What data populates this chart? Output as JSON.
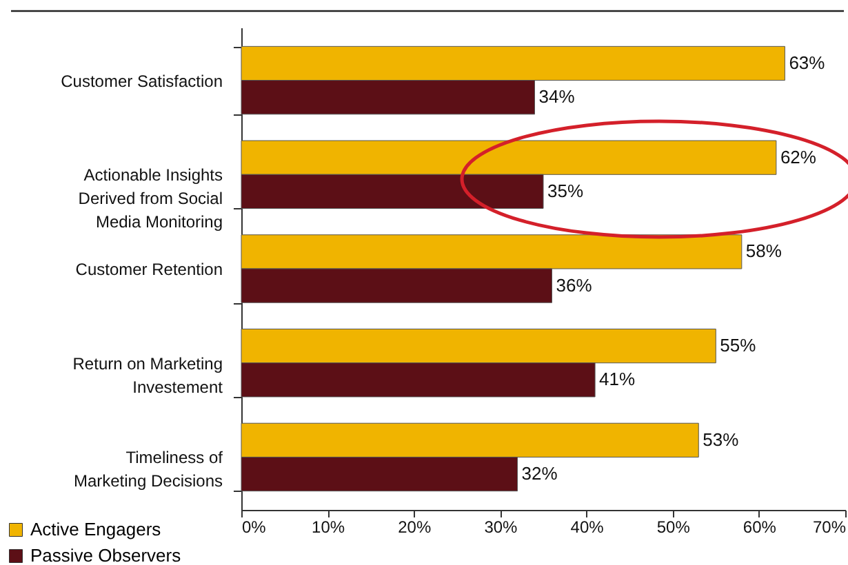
{
  "chart_data": {
    "type": "bar",
    "orientation": "horizontal",
    "categories": [
      "Customer Satisfaction",
      "Actionable Insights Derived from Social Media Monitoring",
      "Customer Retention",
      "Return on Marketing Investement",
      "Timeliness of Marketing Decisions"
    ],
    "series": [
      {
        "name": "Active Engagers",
        "color": "#f0b400",
        "values": [
          63,
          62,
          58,
          55,
          53
        ],
        "value_labels": [
          "63%",
          "62%",
          "58%",
          "55%",
          "53%"
        ]
      },
      {
        "name": "Passive Observers",
        "color": "#5c0f16",
        "values": [
          34,
          35,
          36,
          41,
          32
        ],
        "value_labels": [
          "34%",
          "35%",
          "36%",
          "41%",
          "32%"
        ]
      }
    ],
    "xlim": [
      0,
      70
    ],
    "xticks": [
      {
        "value": 0,
        "label": "0%"
      },
      {
        "value": 10,
        "label": "10%"
      },
      {
        "value": 20,
        "label": "20%"
      },
      {
        "value": 30,
        "label": "30%"
      },
      {
        "value": 40,
        "label": "40%"
      },
      {
        "value": 50,
        "label": "50%"
      },
      {
        "value": 60,
        "label": "60%"
      },
      {
        "value": 70,
        "label": "70%"
      }
    ],
    "legend": "bottom left",
    "grid": false
  }
}
